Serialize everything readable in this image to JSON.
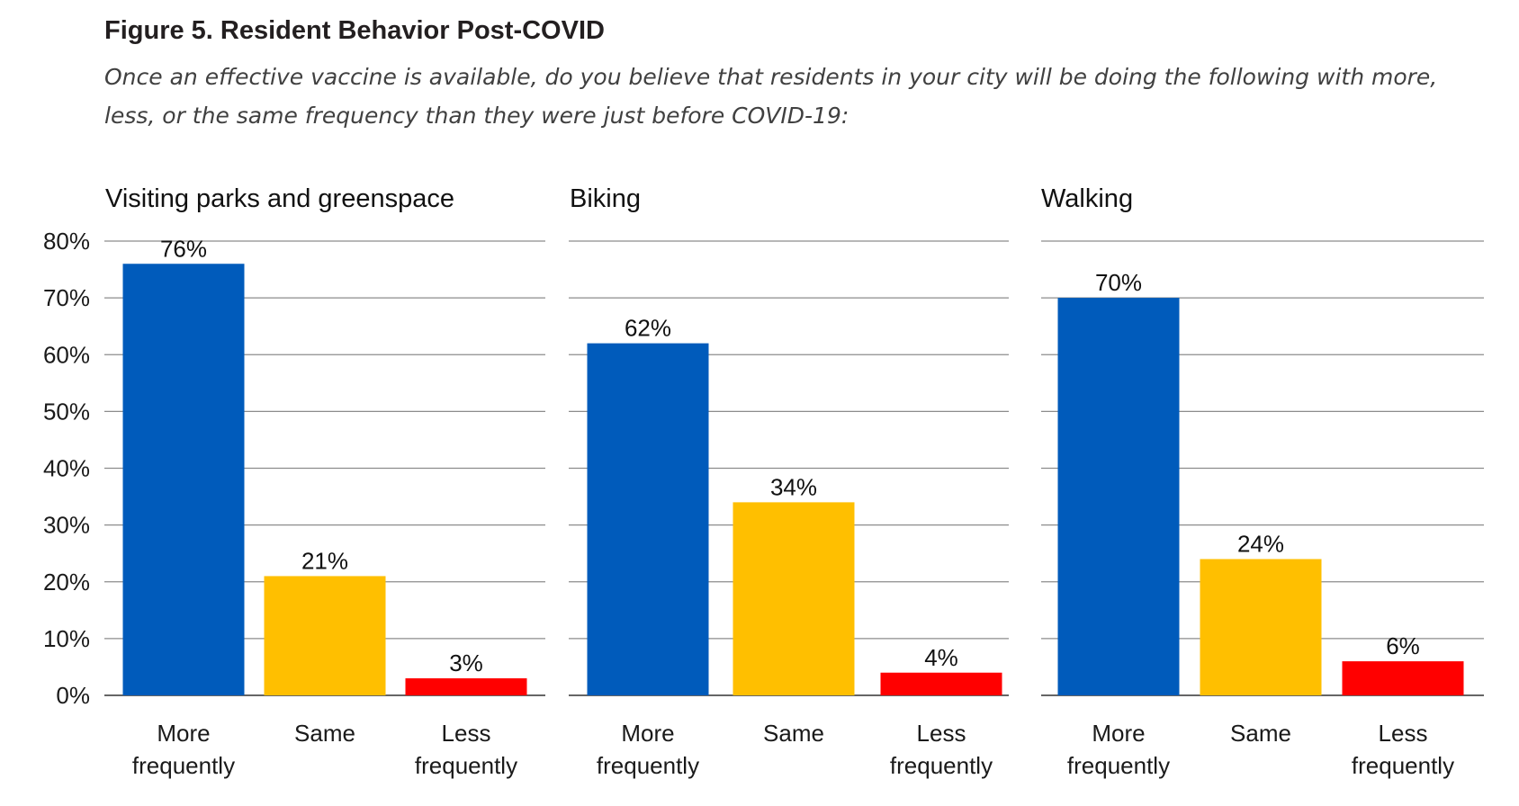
{
  "figure": {
    "title": "Figure 5. Resident Behavior Post-COVID",
    "subtitle": "Once an effective vaccine is available, do you believe that residents in your city will be doing the following with more, less, or the same frequency than they were just before COVID-19:"
  },
  "colors": {
    "more": "#005bbb",
    "same": "#ffbf00",
    "less": "#ff0000",
    "grid": "#8c8c8c",
    "baseline": "#666666"
  },
  "chart_data": {
    "type": "bar",
    "ylim": [
      0,
      80
    ],
    "yticks": [
      "0%",
      "10%",
      "20%",
      "30%",
      "40%",
      "50%",
      "60%",
      "70%",
      "80%"
    ],
    "grid": true,
    "categories": [
      [
        "More",
        "frequently"
      ],
      [
        "Same"
      ],
      [
        "Less",
        "frequently"
      ]
    ],
    "panels": [
      {
        "title": "Visiting parks and greenspace",
        "values": [
          76,
          21,
          3
        ],
        "labels": [
          "76%",
          "21%",
          "3%"
        ]
      },
      {
        "title": "Biking",
        "values": [
          62,
          34,
          4
        ],
        "labels": [
          "62%",
          "34%",
          "4%"
        ]
      },
      {
        "title": "Walking",
        "values": [
          70,
          24,
          6
        ],
        "labels": [
          "70%",
          "24%",
          "6%"
        ]
      }
    ]
  }
}
